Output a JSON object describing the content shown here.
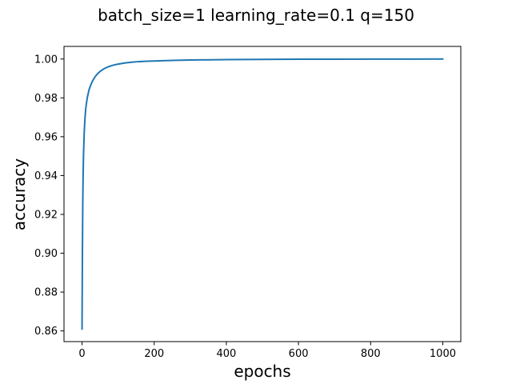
{
  "chart_data": {
    "type": "line",
    "title": "batch_size=1 learning_rate=0.1 q=150",
    "xlabel": "epochs",
    "ylabel": "accuracy",
    "xlim": [
      -50,
      1050
    ],
    "ylim": [
      0.8545,
      1.0065
    ],
    "grid": false,
    "legend": "none",
    "xticks": [
      0,
      200,
      400,
      600,
      800,
      1000
    ],
    "xtick_labels": [
      "0",
      "200",
      "400",
      "600",
      "800",
      "1000"
    ],
    "yticks": [
      0.86,
      0.88,
      0.9,
      0.92,
      0.94,
      0.96,
      0.98,
      1.0
    ],
    "ytick_labels": [
      "0.86",
      "0.88",
      "0.90",
      "0.92",
      "0.94",
      "0.96",
      "0.98",
      "1.00"
    ],
    "series": [
      {
        "color": "#1f77b4",
        "x": [
          0,
          1,
          2,
          3,
          4,
          6,
          8,
          10,
          12,
          15,
          18,
          20,
          25,
          30,
          35,
          40,
          45,
          50,
          60,
          70,
          80,
          90,
          100,
          120,
          140,
          160,
          180,
          200,
          250,
          300,
          400,
          500,
          600,
          700,
          800,
          900,
          1000
        ],
        "y": [
          0.861,
          0.9,
          0.925,
          0.94,
          0.95,
          0.962,
          0.969,
          0.974,
          0.977,
          0.9805,
          0.983,
          0.9845,
          0.987,
          0.989,
          0.9905,
          0.9918,
          0.9928,
          0.9936,
          0.9949,
          0.9958,
          0.9965,
          0.997,
          0.9974,
          0.998,
          0.9984,
          0.9987,
          0.9989,
          0.999,
          0.9993,
          0.9995,
          0.9997,
          0.9998,
          0.9999,
          0.9999,
          0.99995,
          0.99998,
          1.0
        ]
      }
    ]
  }
}
